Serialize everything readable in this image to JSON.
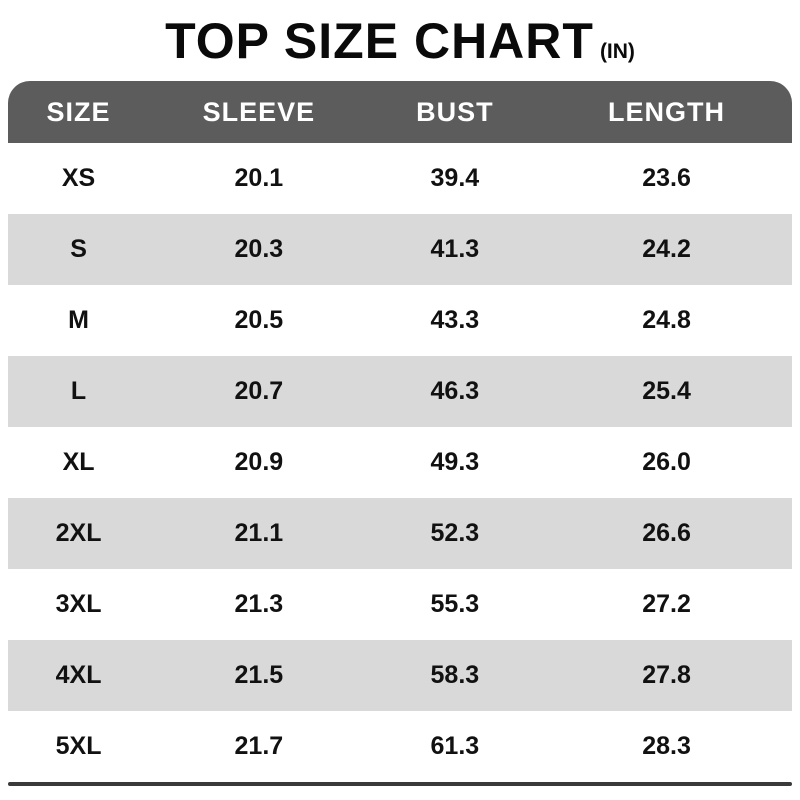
{
  "title": "TOP SIZE CHART",
  "title_unit": "(IN)",
  "chart_data": {
    "type": "table",
    "title": "TOP SIZE CHART (IN)",
    "columns": [
      "SIZE",
      "SLEEVE",
      "BUST",
      "LENGTH"
    ],
    "rows": [
      [
        "XS",
        "20.1",
        "39.4",
        "23.6"
      ],
      [
        "S",
        "20.3",
        "41.3",
        "24.2"
      ],
      [
        "M",
        "20.5",
        "43.3",
        "24.8"
      ],
      [
        "L",
        "20.7",
        "46.3",
        "25.4"
      ],
      [
        "XL",
        "20.9",
        "49.3",
        "26.0"
      ],
      [
        "2XL",
        "21.1",
        "52.3",
        "26.6"
      ],
      [
        "3XL",
        "21.3",
        "55.3",
        "27.2"
      ],
      [
        "4XL",
        "21.5",
        "58.3",
        "27.8"
      ],
      [
        "5XL",
        "21.7",
        "61.3",
        "28.3"
      ]
    ],
    "layout": {
      "striped": true,
      "first_data_row_background": "white",
      "header_corner_radius": "rounded-top"
    }
  },
  "colors": {
    "header_bg": "#5c5c5c",
    "header_text": "#ffffff",
    "row_bg": "#ffffff",
    "row_alt_bg": "#d9d9d9",
    "cell_text": "#111111",
    "bottom_border": "#3a3a3a",
    "title_text": "#0a0a0a"
  }
}
